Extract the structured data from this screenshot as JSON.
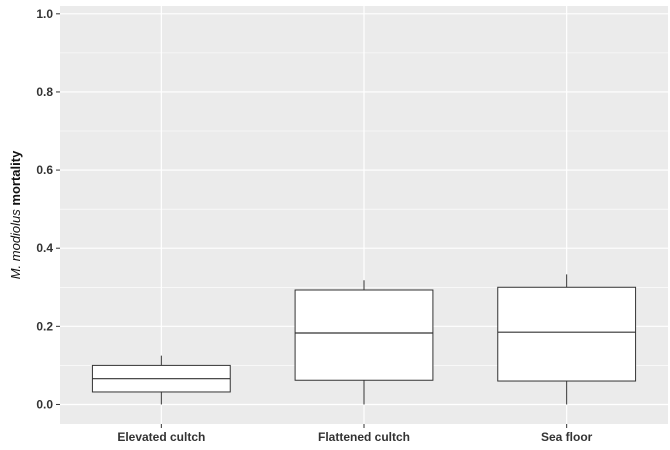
{
  "chart_data": {
    "type": "boxplot",
    "title": "",
    "xlabel": "",
    "ylabel_italic": "M. modiolus",
    "ylabel_rest": " mortality",
    "ylim": [
      -0.05,
      1.02
    ],
    "y_ticks": [
      0.0,
      0.2,
      0.4,
      0.6,
      0.8,
      1.0
    ],
    "y_tick_labels": [
      "0.0",
      "0.2",
      "0.4",
      "0.6",
      "0.8",
      "1.0"
    ],
    "grid": true,
    "colors": {
      "panel": "#ebebeb",
      "grid": "#ffffff",
      "box_fill": "#ffffff",
      "box_stroke": "#333333"
    },
    "categories": [
      "Elevated cultch",
      "Flattened cultch",
      "Sea floor"
    ],
    "boxes": [
      {
        "category": "Elevated cultch",
        "min": 0.0,
        "q1": 0.032,
        "median": 0.066,
        "q3": 0.1,
        "max": 0.125
      },
      {
        "category": "Flattened cultch",
        "min": 0.0,
        "q1": 0.062,
        "median": 0.183,
        "q3": 0.293,
        "max": 0.318
      },
      {
        "category": "Sea floor",
        "min": 0.0,
        "q1": 0.06,
        "median": 0.185,
        "q3": 0.3,
        "max": 0.333
      }
    ]
  }
}
